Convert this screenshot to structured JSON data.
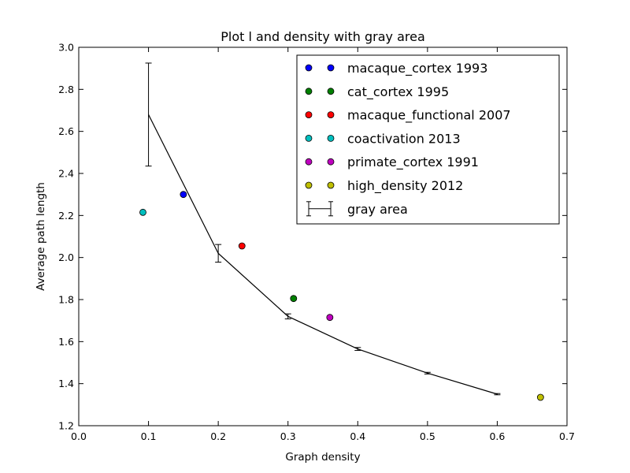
{
  "chart_data": {
    "type": "scatter",
    "title": "Plot l and density with gray area",
    "xlabel": "Graph density",
    "ylabel": "Average path length",
    "xlim": [
      0.0,
      0.7
    ],
    "ylim": [
      1.2,
      3.0
    ],
    "xticks": [
      "0.0",
      "0.1",
      "0.2",
      "0.3",
      "0.4",
      "0.5",
      "0.6",
      "0.7"
    ],
    "yticks": [
      "1.2",
      "1.4",
      "1.6",
      "1.8",
      "2.0",
      "2.2",
      "2.4",
      "2.6",
      "2.8",
      "3.0"
    ],
    "grid": false,
    "legend_position": "top-right",
    "points": [
      {
        "name": "macaque_cortex 1993",
        "x": 0.15,
        "y": 2.3,
        "color": "#0000ff"
      },
      {
        "name": "cat_cortex 1995",
        "x": 0.308,
        "y": 1.805,
        "color": "#008000"
      },
      {
        "name": "macaque_functional 2007",
        "x": 0.234,
        "y": 2.055,
        "color": "#ff0000"
      },
      {
        "name": "coactivation 2013",
        "x": 0.092,
        "y": 2.215,
        "color": "#00bfbf"
      },
      {
        "name": "primate_cortex 1991",
        "x": 0.36,
        "y": 1.715,
        "color": "#bf00bf"
      },
      {
        "name": "high_density 2012",
        "x": 0.662,
        "y": 1.335,
        "color": "#bfbf00"
      }
    ],
    "errorbar": {
      "name": "gray area",
      "color": "#000000",
      "x": [
        0.1,
        0.2,
        0.3,
        0.4,
        0.5,
        0.6
      ],
      "y": [
        2.68,
        2.02,
        1.72,
        1.565,
        1.45,
        1.35
      ],
      "err": [
        0.245,
        0.042,
        0.012,
        0.007,
        0.004,
        0.003
      ]
    }
  }
}
